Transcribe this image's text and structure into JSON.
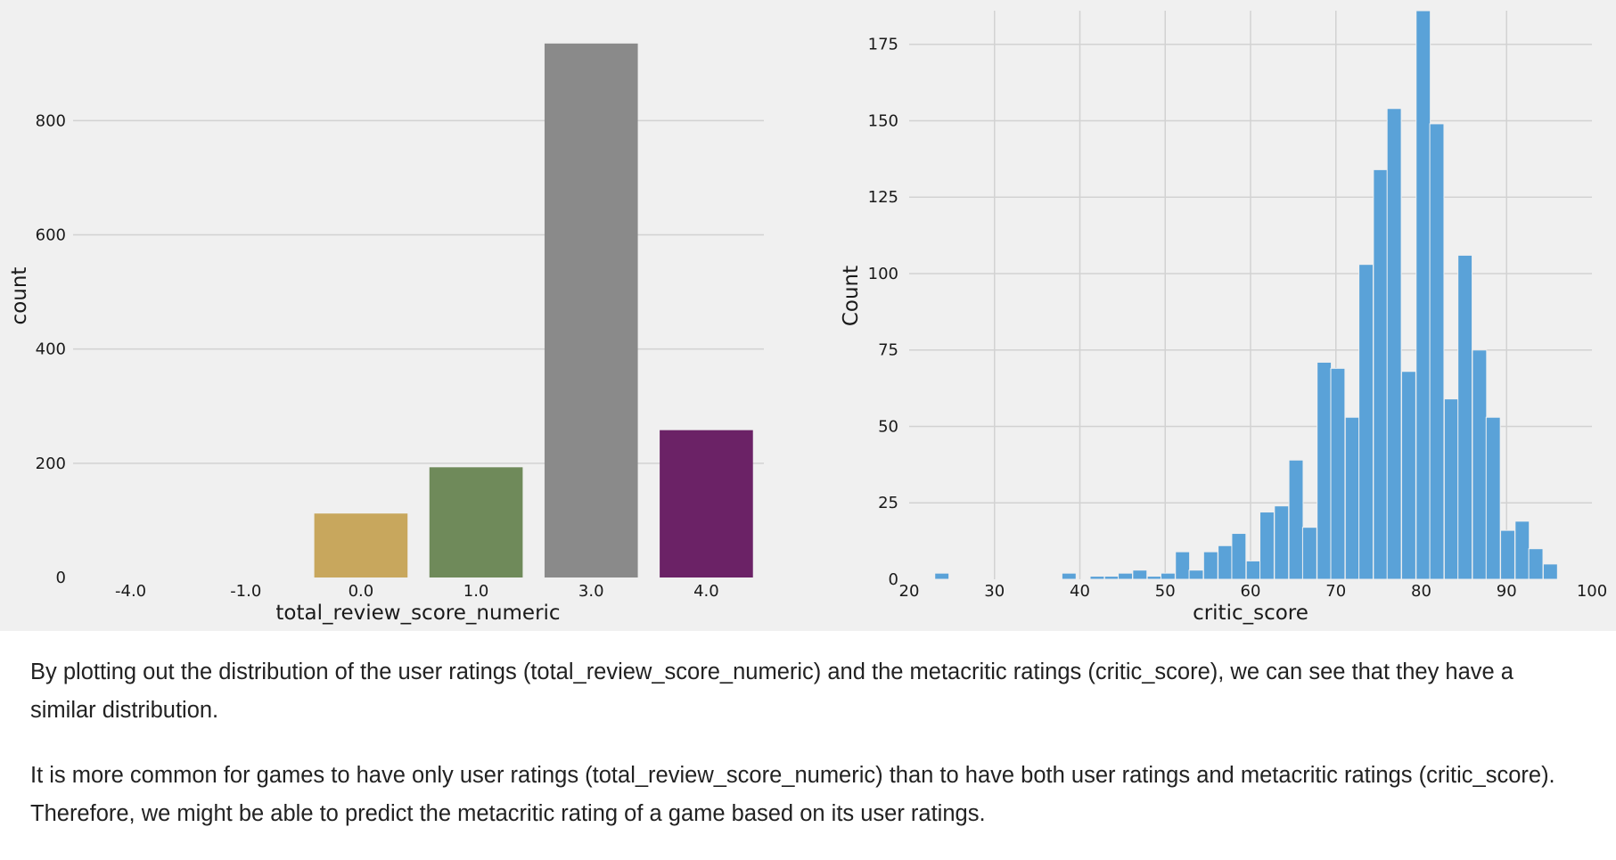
{
  "chart_data": [
    {
      "type": "bar",
      "xlabel": "total_review_score_numeric",
      "ylabel": "count",
      "categories": [
        "-4.0",
        "-1.0",
        "0.0",
        "1.0",
        "3.0",
        "4.0"
      ],
      "values": [
        0,
        0,
        112,
        193,
        935,
        258
      ],
      "colors": [
        "#4c72b0",
        "#dd8452",
        "#c8a75d",
        "#6f8a5a",
        "#8a8a8a",
        "#6b2266"
      ],
      "ylim": [
        0,
        980
      ],
      "yticks": [
        0,
        200,
        400,
        600,
        800
      ],
      "grid": "horizontal"
    },
    {
      "type": "bar",
      "subtype": "histogram",
      "xlabel": "critic_score",
      "ylabel": "Count",
      "xlim": [
        20,
        100
      ],
      "ylim": [
        0,
        186
      ],
      "xticks": [
        20,
        30,
        40,
        50,
        60,
        70,
        80,
        90,
        100
      ],
      "yticks": [
        0,
        25,
        50,
        75,
        100,
        125,
        150,
        175
      ],
      "bin_width": 1.66,
      "bins": [
        [
          23.0,
          2
        ],
        [
          37.9,
          2
        ],
        [
          41.2,
          1
        ],
        [
          42.9,
          1
        ],
        [
          44.5,
          2
        ],
        [
          46.2,
          3
        ],
        [
          47.9,
          1
        ],
        [
          49.5,
          2
        ],
        [
          51.2,
          9
        ],
        [
          52.8,
          3
        ],
        [
          54.5,
          9
        ],
        [
          56.2,
          11
        ],
        [
          57.8,
          15
        ],
        [
          59.5,
          6
        ],
        [
          61.1,
          22
        ],
        [
          62.8,
          24
        ],
        [
          64.5,
          39
        ],
        [
          66.1,
          17
        ],
        [
          67.8,
          71
        ],
        [
          69.4,
          69
        ],
        [
          71.1,
          53
        ],
        [
          72.7,
          103
        ],
        [
          74.4,
          134
        ],
        [
          76.0,
          154
        ],
        [
          77.7,
          68
        ],
        [
          79.4,
          186
        ],
        [
          81.0,
          149
        ],
        [
          82.7,
          59
        ],
        [
          84.3,
          106
        ],
        [
          86.0,
          75
        ],
        [
          87.6,
          53
        ],
        [
          89.3,
          16
        ],
        [
          91.0,
          19
        ],
        [
          92.6,
          10
        ],
        [
          94.3,
          5
        ]
      ],
      "bar_color": "#5aa2d8",
      "grid": "both"
    }
  ],
  "notes": [
    "By plotting out the distribution of the user ratings (total_review_score_numeric) and the metacritic ratings (critic_score), we can see that they have a similar distribution.",
    "It is more common for games to have only user ratings (total_review_score_numeric) than to have both user ratings and metacritic ratings (critic_score). Therefore, we might be able to predict the metacritic rating of a game based on its user ratings."
  ]
}
